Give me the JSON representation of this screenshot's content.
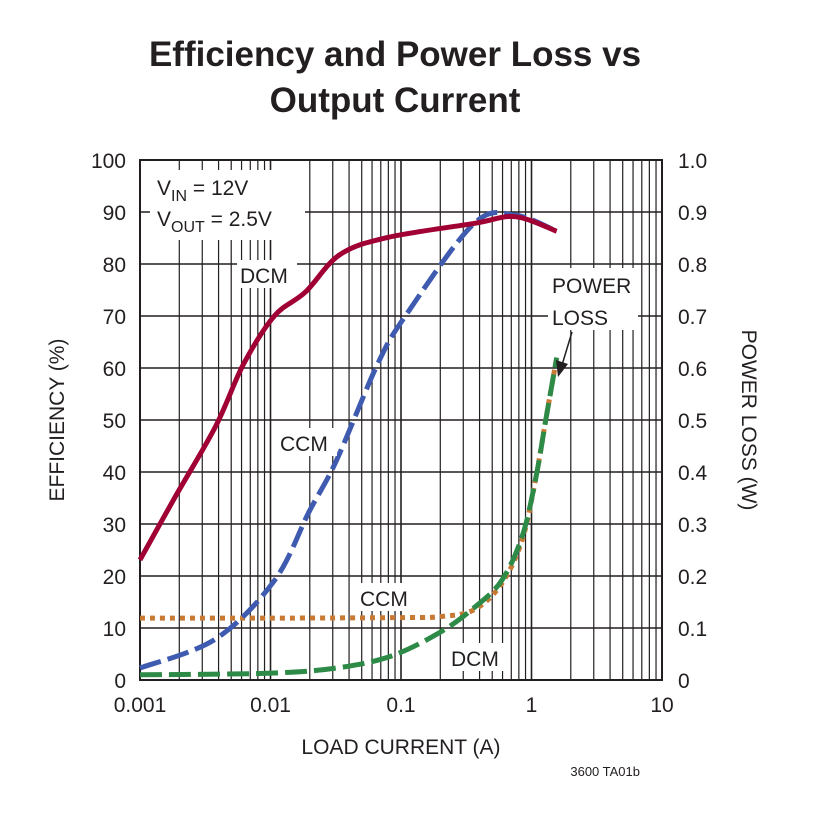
{
  "chart_data": {
    "type": "line",
    "title_lines": [
      "Efficiency and Power Loss vs",
      "Output Current"
    ],
    "xlabel": "LOAD CURRENT (A)",
    "ylabel_left": "EFFICIENCY (%)",
    "ylabel_right": "POWER LOSS (W)",
    "x_scale": "log",
    "xlim": [
      0.001,
      10
    ],
    "ylim_left": [
      0,
      100
    ],
    "ylim_right": [
      0,
      1.0
    ],
    "grid": true,
    "x_ticks": [
      "0.001",
      "0.01",
      "0.1",
      "1",
      "10"
    ],
    "y_ticks_left": [
      "0",
      "10",
      "20",
      "30",
      "40",
      "50",
      "60",
      "70",
      "80",
      "90",
      "100"
    ],
    "y_ticks_right": [
      "0",
      "0.1",
      "0.2",
      "0.3",
      "0.4",
      "0.5",
      "0.6",
      "0.7",
      "0.8",
      "0.9",
      "1.0"
    ],
    "conditions": [
      {
        "symbol": "V",
        "sub": "IN",
        "value": " = 12V"
      },
      {
        "symbol": "V",
        "sub": "OUT",
        "value": " = 2.5V"
      }
    ],
    "series": [
      {
        "label": "DCM",
        "axis": "left",
        "style": "solid",
        "color": "#a00033",
        "x": [
          0.001,
          0.00184,
          0.0038,
          0.0062,
          0.0107,
          0.0185,
          0.034,
          0.079,
          0.363,
          0.75,
          1.56
        ],
        "y": [
          23.1,
          35,
          48.8,
          60.7,
          70,
          74.6,
          81.8,
          85.1,
          87.8,
          89.1,
          86.3
        ]
      },
      {
        "label": "CCM",
        "axis": "left",
        "style": "dashed",
        "color": "#3f5bb0",
        "x": [
          0.001,
          0.0038,
          0.0107,
          0.0197,
          0.032,
          0.066,
          0.108,
          0.363,
          0.75,
          1.56
        ],
        "y": [
          2.3,
          7.9,
          19.1,
          32.3,
          42.2,
          60.7,
          70,
          87.8,
          89.4,
          86.3
        ]
      },
      {
        "label": "CCM",
        "axis": "right",
        "style": "dotted",
        "color": "#c87a35",
        "x": [
          0.001,
          0.01,
          0.1,
          0.2,
          0.363,
          0.59,
          0.85,
          1.08,
          1.29,
          1.56
        ],
        "y": [
          0.119,
          0.119,
          0.12,
          0.122,
          0.135,
          0.185,
          0.27,
          0.389,
          0.502,
          0.62
        ]
      },
      {
        "label": "DCM",
        "axis": "right",
        "style": "dashed",
        "color": "#2e8a47",
        "x": [
          0.001,
          0.0095,
          0.032,
          0.084,
          0.2,
          0.363,
          0.59,
          0.85,
          1.08,
          1.29,
          1.56
        ],
        "y": [
          0.01,
          0.013,
          0.023,
          0.046,
          0.092,
          0.139,
          0.191,
          0.277,
          0.389,
          0.502,
          0.62
        ]
      }
    ],
    "annotations": {
      "power_loss_line1": "POWER",
      "power_loss_line2": "LOSS"
    },
    "figure_code": "3600 TA01b"
  }
}
